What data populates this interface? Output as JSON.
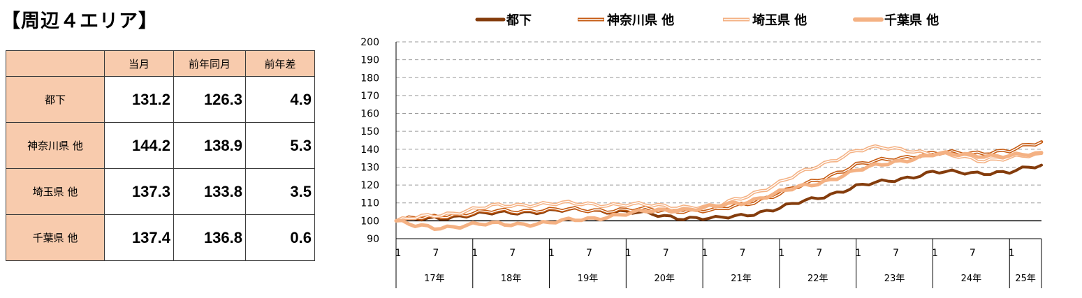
{
  "title": "【周辺４エリア】",
  "table": {
    "headers": [
      "当月",
      "前年同月",
      "前年差"
    ],
    "rows": [
      {
        "label": "都下",
        "current": "131.2",
        "prev_year": "126.3",
        "diff": "4.9"
      },
      {
        "label": "神奈川県 他",
        "current": "144.2",
        "prev_year": "138.9",
        "diff": "5.3"
      },
      {
        "label": "埼玉県 他",
        "current": "137.3",
        "prev_year": "133.8",
        "diff": "3.5"
      },
      {
        "label": "千葉県 他",
        "current": "137.4",
        "prev_year": "136.8",
        "diff": "0.6"
      }
    ]
  },
  "chart_data": {
    "type": "line",
    "ylim": [
      90,
      200
    ],
    "yticks": [
      90,
      100,
      110,
      120,
      130,
      140,
      150,
      160,
      170,
      180,
      190,
      200
    ],
    "grid": true,
    "legend_position": "top",
    "x_months": 102,
    "month_tick_labels": [
      "1",
      "7"
    ],
    "last_year_month_tick_labels": [
      "1"
    ],
    "year_labels": [
      "17年",
      "18年",
      "19年",
      "20年",
      "21年",
      "22年",
      "23年",
      "24年",
      "25年"
    ],
    "series": [
      {
        "name": "都下",
        "color": "#843c0c",
        "style": "solid-thick",
        "knots": [
          [
            0,
            100
          ],
          [
            5,
            101
          ],
          [
            12,
            103.5
          ],
          [
            20,
            105
          ],
          [
            30,
            106
          ],
          [
            36,
            105
          ],
          [
            44,
            102
          ],
          [
            50,
            101
          ],
          [
            54,
            103
          ],
          [
            60,
            107
          ],
          [
            66,
            113
          ],
          [
            72,
            119
          ],
          [
            78,
            123
          ],
          [
            84,
            127
          ],
          [
            90,
            127
          ],
          [
            96,
            127
          ],
          [
            101,
            131
          ]
        ]
      },
      {
        "name": "神奈川県 他",
        "color": "#c55a11",
        "style": "double",
        "knots": [
          [
            0,
            100
          ],
          [
            8,
            103
          ],
          [
            15,
            105
          ],
          [
            22,
            106
          ],
          [
            30,
            106
          ],
          [
            36,
            106
          ],
          [
            44,
            106
          ],
          [
            50,
            105.5
          ],
          [
            55,
            110
          ],
          [
            60,
            115
          ],
          [
            66,
            123
          ],
          [
            72,
            131
          ],
          [
            78,
            135
          ],
          [
            84,
            137.5
          ],
          [
            90,
            138
          ],
          [
            96,
            139
          ],
          [
            101,
            144
          ]
        ]
      },
      {
        "name": "埼玉県 他",
        "color": "#f4b183",
        "style": "double",
        "knots": [
          [
            0,
            100
          ],
          [
            8,
            104
          ],
          [
            15,
            108
          ],
          [
            22,
            109.5
          ],
          [
            28,
            109.5
          ],
          [
            36,
            109
          ],
          [
            44,
            108
          ],
          [
            50,
            107.5
          ],
          [
            54,
            113
          ],
          [
            60,
            121
          ],
          [
            66,
            131
          ],
          [
            72,
            139
          ],
          [
            76,
            141
          ],
          [
            80,
            140
          ],
          [
            84,
            137
          ],
          [
            88,
            136
          ],
          [
            92,
            134
          ],
          [
            96,
            135
          ],
          [
            101,
            137
          ]
        ]
      },
      {
        "name": "千葉県 他",
        "color": "#f4b183",
        "style": "solid-wide",
        "knots": [
          [
            0,
            100
          ],
          [
            3,
            97
          ],
          [
            6,
            96
          ],
          [
            12,
            98
          ],
          [
            18,
            98
          ],
          [
            24,
            99
          ],
          [
            30,
            101
          ],
          [
            36,
            104
          ],
          [
            42,
            106
          ],
          [
            48,
            107
          ],
          [
            54,
            110
          ],
          [
            60,
            116
          ],
          [
            66,
            121
          ],
          [
            72,
            128
          ],
          [
            78,
            133
          ],
          [
            84,
            137
          ],
          [
            90,
            137
          ],
          [
            96,
            136
          ],
          [
            101,
            137.5
          ]
        ]
      }
    ]
  }
}
